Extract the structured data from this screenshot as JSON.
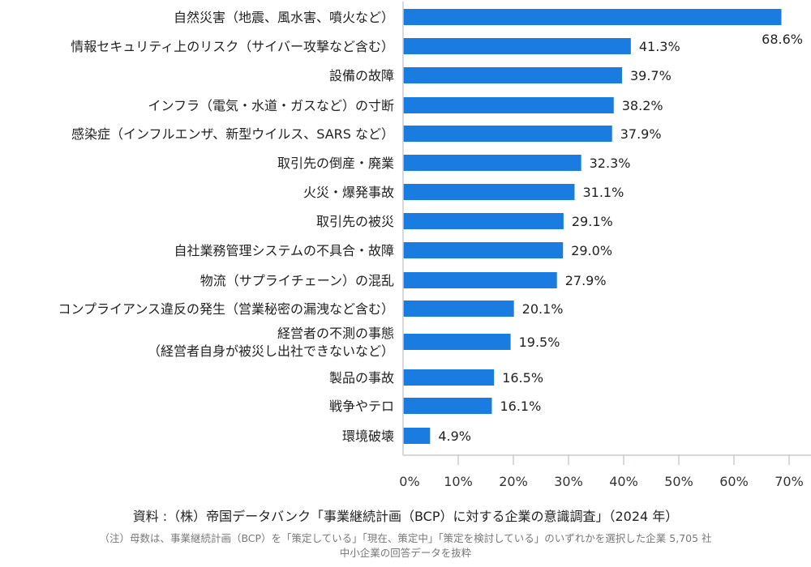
{
  "chart_data": {
    "type": "bar",
    "orientation": "horizontal",
    "categories": [
      "自然災害（地震、風水害、噴火など）",
      "情報セキュリティ上のリスク（サイバー攻撃など含む）",
      "設備の故障",
      "インフラ（電気・水道・ガスなど）の寸断",
      "感染症（インフルエンザ、新型ウイルス、SARS など）",
      "取引先の倒産・廃業",
      "火災・爆発事故",
      "取引先の被災",
      "自社業務管理システムの不具合・故障",
      "物流（サプライチェーン）の混乱",
      "コンプライアンス違反の発生（営業秘密の漏洩など含む）",
      "経営者の不測の事態\n（経営者自身が被災し出社できないなど）",
      "製品の事故",
      "戦争やテロ",
      "環境破壊"
    ],
    "values": [
      68.6,
      41.3,
      39.7,
      38.2,
      37.9,
      32.3,
      31.1,
      29.1,
      29.0,
      27.9,
      20.1,
      19.5,
      16.5,
      16.1,
      4.9
    ],
    "data_labels": [
      "68.6%",
      "41.3%",
      "39.7%",
      "38.2%",
      "37.9%",
      "32.3%",
      "31.1%",
      "29.1%",
      "29.0%",
      "27.9%",
      "20.1%",
      "19.5%",
      "16.5%",
      "16.1%",
      "4.9%"
    ],
    "xlim": [
      0,
      70
    ],
    "x_ticks": [
      "0%",
      "10%",
      "20%",
      "30%",
      "40%",
      "50%",
      "60%",
      "70%"
    ],
    "grid": false,
    "bar_color": "#1a7be0",
    "axis_color": "#c8ccd4"
  },
  "source": "資料 :（株）帝国データバンク「事業継続計画（BCP）に対する企業の意識調査」（2024 年）",
  "note_line1": "（注）母数は、事業継続計画（BCP）を「策定している」「現在、策定中」「策定を検討している」のいずれかを選択した企業 5,705 社",
  "note_line2": "中小企業の回答データを抜粋"
}
